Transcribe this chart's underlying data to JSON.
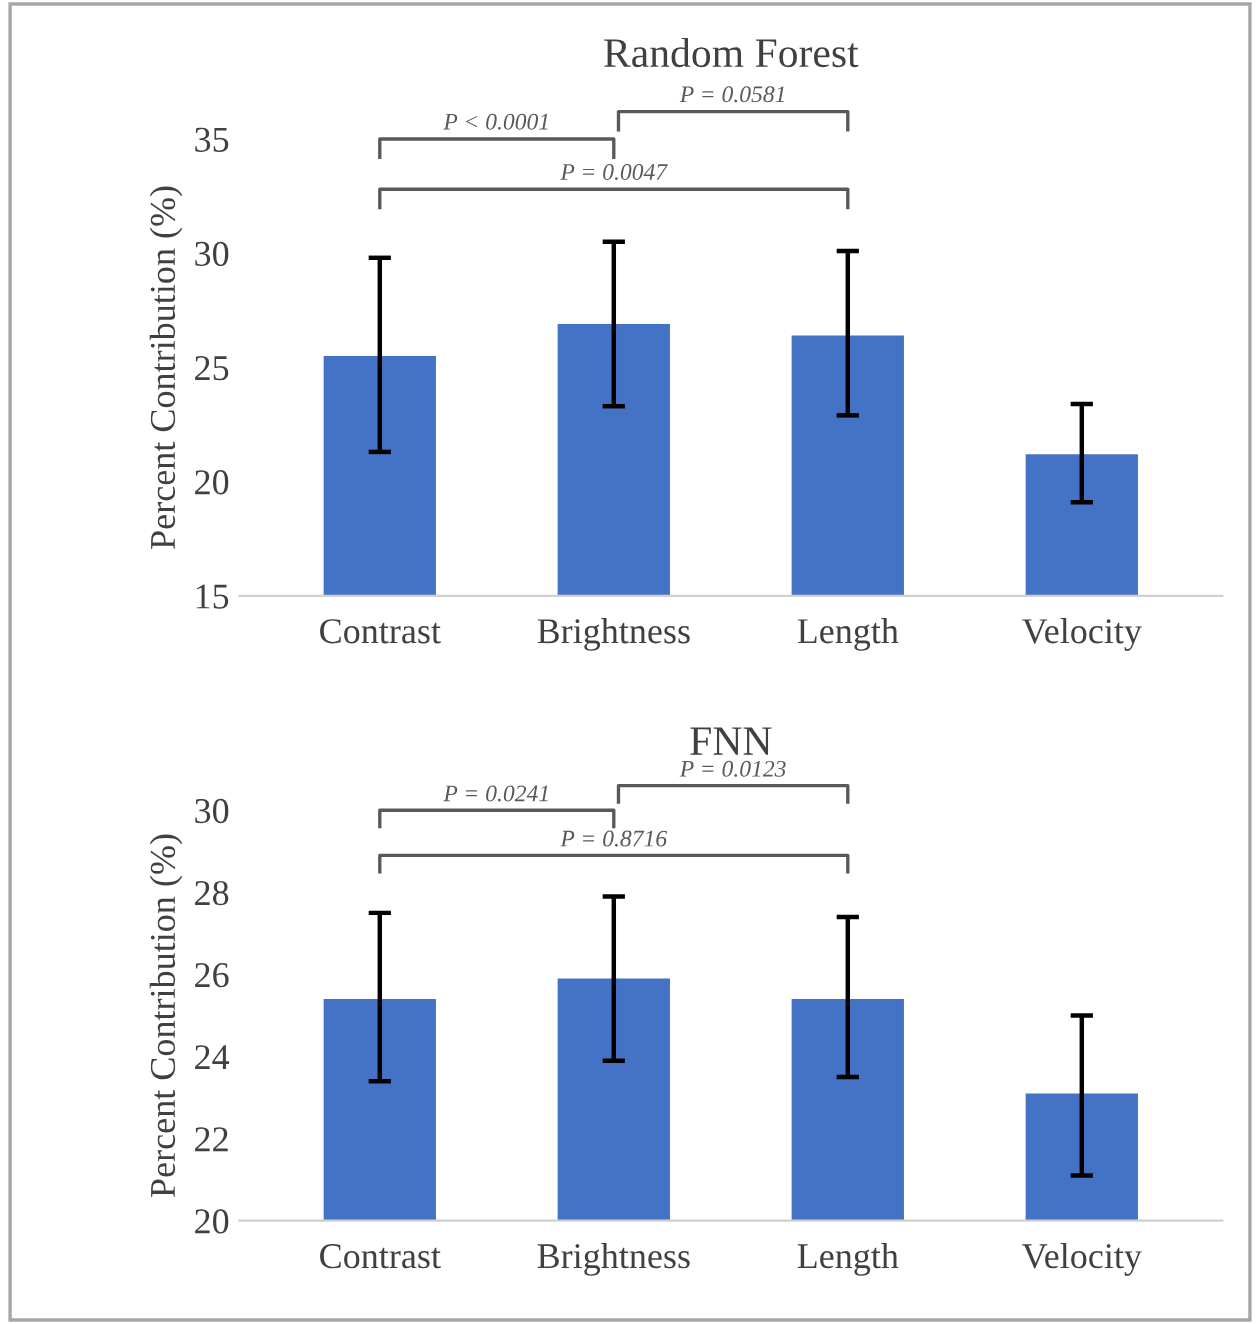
{
  "chart_data": [
    {
      "type": "bar",
      "title": "Random Forest",
      "ylabel": "Percent Contribution (%)",
      "categories": [
        "Contrast",
        "Brightness",
        "Length",
        "Velocity"
      ],
      "values": [
        25.5,
        26.9,
        26.4,
        21.2
      ],
      "color": "#4472c4",
      "errors": [
        [
          21.3,
          29.8
        ],
        [
          23.3,
          30.5
        ],
        [
          22.9,
          30.1
        ],
        [
          19.1,
          23.4
        ]
      ],
      "ylim": [
        15,
        35
      ],
      "yticks": [
        15,
        20,
        25,
        30,
        35
      ],
      "grid": false,
      "annotations": [
        "P < 0.0001",
        "P = 0.0581",
        "P = 0.0047"
      ]
    },
    {
      "type": "bar",
      "title": "FNN",
      "ylabel": "Percent Contribution (%)",
      "categories": [
        "Contrast",
        "Brightness",
        "Length",
        "Velocity"
      ],
      "values": [
        25.4,
        25.9,
        25.4,
        23.1
      ],
      "color": "#4472c4",
      "errors": [
        [
          23.4,
          27.5
        ],
        [
          23.9,
          27.9
        ],
        [
          23.5,
          27.4
        ],
        [
          21.1,
          25.0
        ]
      ],
      "ylim": [
        20,
        30
      ],
      "yticks": [
        20,
        22,
        24,
        26,
        28,
        30
      ],
      "grid": false,
      "annotations": [
        "P = 0.0241",
        "P = 0.0123",
        "P = 0.8716"
      ]
    }
  ]
}
